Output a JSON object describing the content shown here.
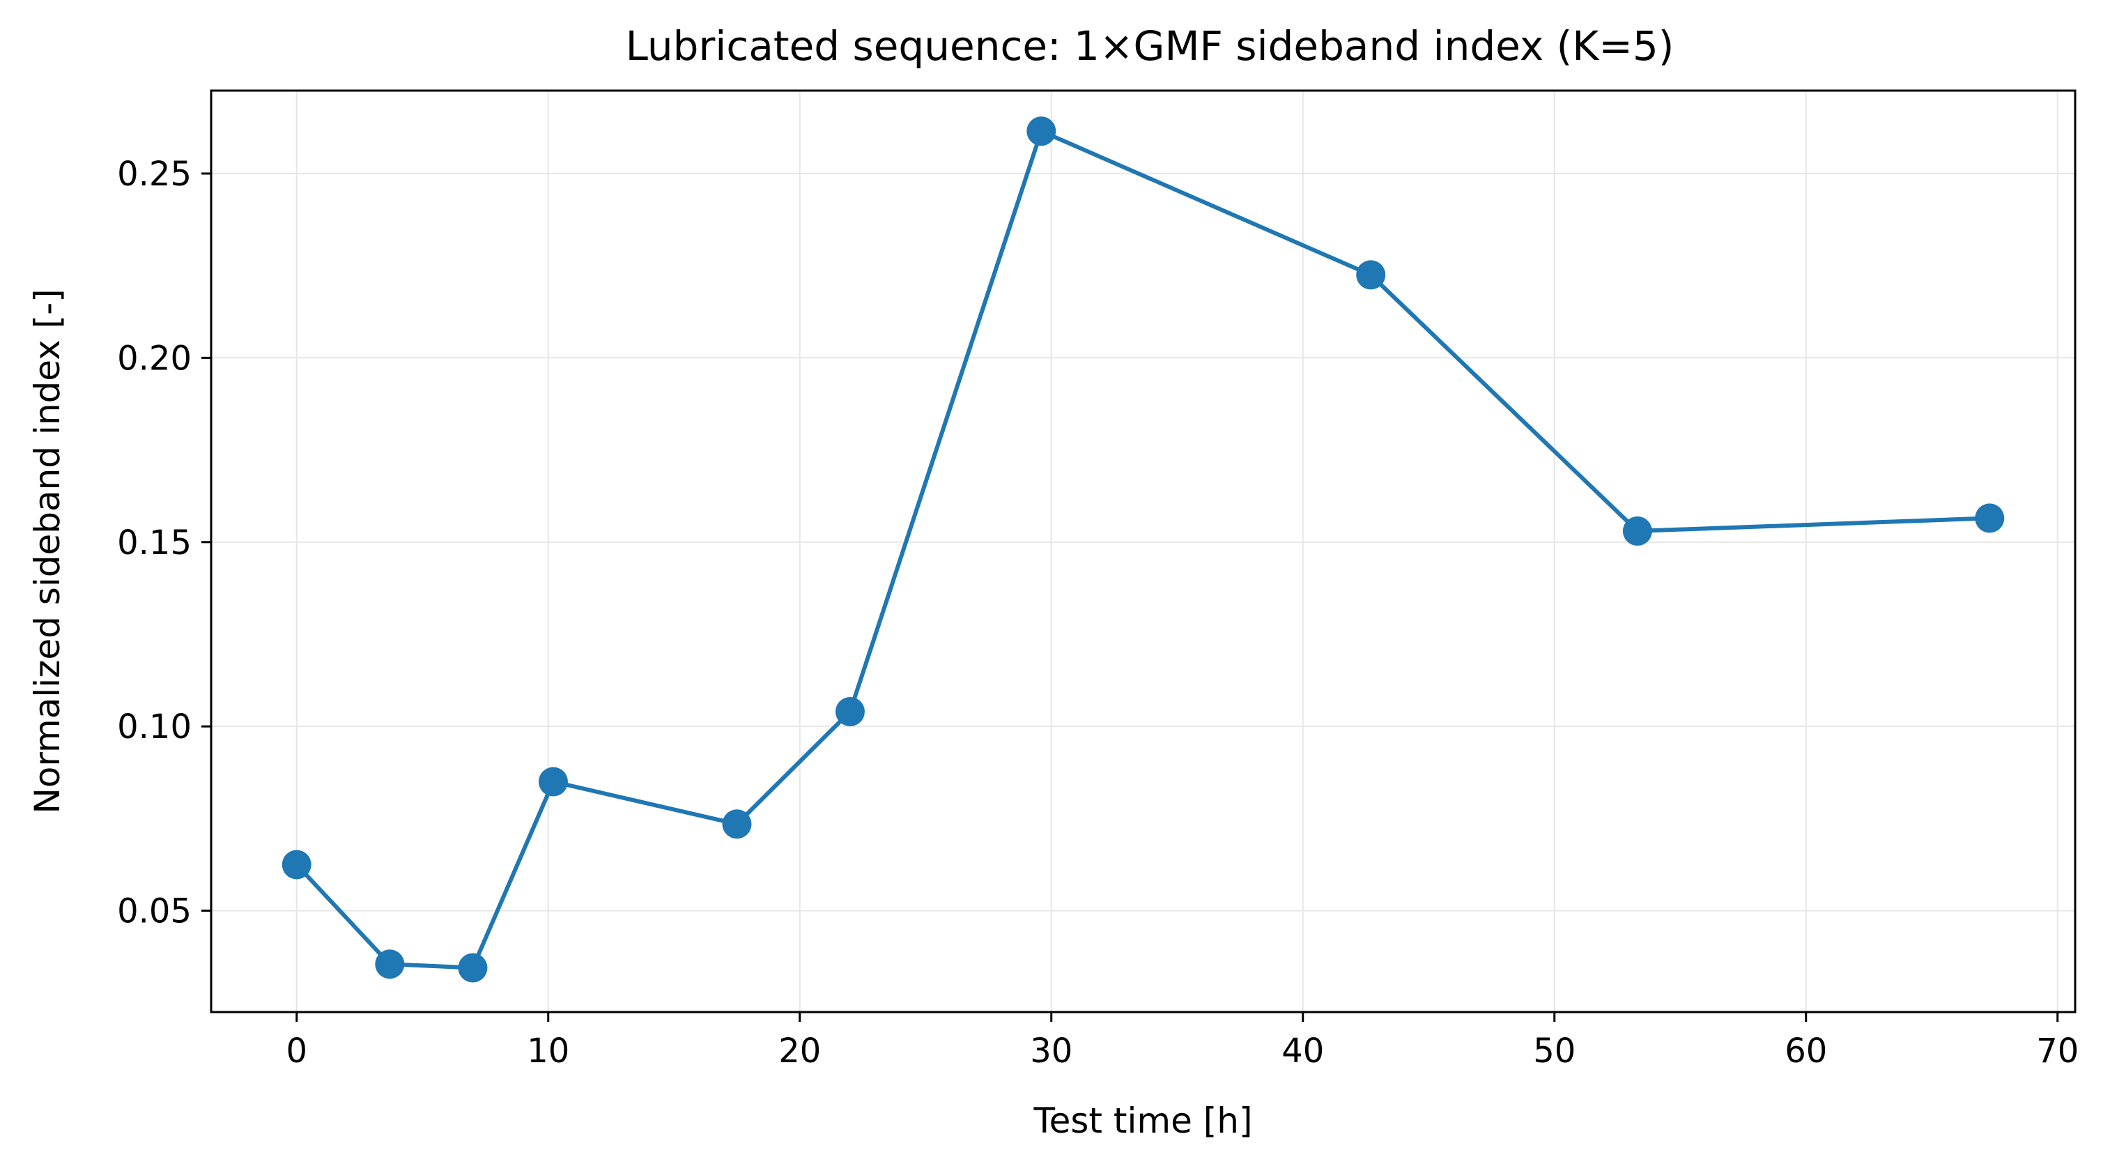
{
  "chart_data": {
    "type": "line",
    "title": "Lubricated sequence: 1×GMF sideband index (K=5)",
    "xlabel": "Test time [h]",
    "ylabel": "Normalized sideband index [-]",
    "xlim": [
      -3.4,
      70.7
    ],
    "ylim": [
      0.0225,
      0.2725
    ],
    "xticks": [
      0,
      10,
      20,
      30,
      40,
      50,
      60,
      70
    ],
    "yticks": [
      0.05,
      0.1,
      0.15,
      0.2,
      0.25
    ],
    "ytick_labels": [
      "0.05",
      "0.10",
      "0.15",
      "0.20",
      "0.25"
    ],
    "grid": true,
    "series": [
      {
        "color": "#1f77b4",
        "marker": "circle",
        "x": [
          0.0,
          3.7,
          7.0,
          10.2,
          17.5,
          22.0,
          29.6,
          42.7,
          53.3,
          67.3
        ],
        "y": [
          0.0625,
          0.0355,
          0.0345,
          0.085,
          0.0735,
          0.104,
          0.2615,
          0.2225,
          0.153,
          0.1565
        ]
      }
    ]
  }
}
